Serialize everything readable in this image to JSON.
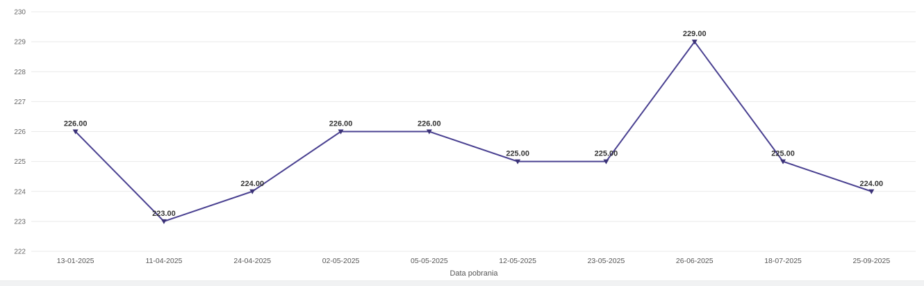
{
  "chart_data": {
    "type": "line",
    "title": "",
    "xlabel": "Data pobrania",
    "ylabel": "",
    "x": [
      "13-01-2025",
      "11-04-2025",
      "24-04-2025",
      "02-05-2025",
      "05-05-2025",
      "12-05-2025",
      "23-05-2025",
      "26-06-2025",
      "18-07-2025",
      "25-09-2025"
    ],
    "values": [
      226,
      223,
      224,
      226,
      226,
      225,
      225,
      229,
      225,
      224
    ],
    "point_labels": [
      "226.00",
      "223.00",
      "224.00",
      "226.00",
      "226.00",
      "225.00",
      "225.00",
      "229.00",
      "225.00",
      "224.00"
    ],
    "ylim": [
      222,
      230
    ],
    "yticks": [
      230,
      229,
      228,
      227,
      226,
      225,
      224,
      223,
      222
    ],
    "grid": true,
    "legend": false,
    "colors": {
      "line": "#4a4191",
      "marker": "#3b3277",
      "point_label": "#333333",
      "tick_label": "#666666",
      "axis_label": "#555555",
      "gridline": "#e9e9e9",
      "background": "#ffffff"
    }
  }
}
